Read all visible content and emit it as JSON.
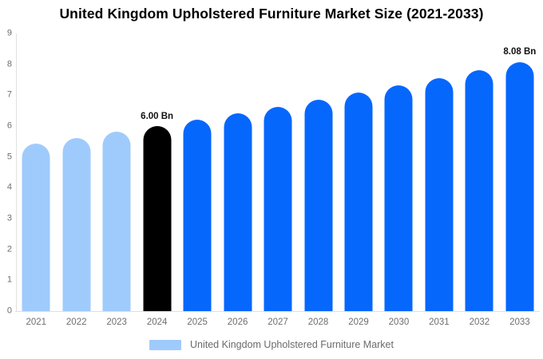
{
  "title": "United Kingdom Upholstered Furniture Market Size (2021-2033)",
  "legend": {
    "label": "United Kingdom Upholstered Furniture Market",
    "swatch_color": "#9fcbfc"
  },
  "chart_data": {
    "type": "bar",
    "title": "United Kingdom Upholstered Furniture Market Size (2021-2033)",
    "xlabel": "",
    "ylabel": "",
    "categories": [
      "2021",
      "2022",
      "2023",
      "2024",
      "2025",
      "2026",
      "2027",
      "2028",
      "2029",
      "2030",
      "2031",
      "2032",
      "2033"
    ],
    "values": [
      5.43,
      5.62,
      5.81,
      6.0,
      6.2,
      6.41,
      6.62,
      6.85,
      7.08,
      7.31,
      7.56,
      7.81,
      8.08
    ],
    "unit": "Bn",
    "value_labels": [
      "",
      "",
      "",
      "6.00 Bn",
      "",
      "",
      "",
      "",
      "",
      "",
      "",
      "",
      "8.08 Bn"
    ],
    "color_keys": [
      "historic",
      "historic",
      "historic",
      "base",
      "forecast",
      "forecast",
      "forecast",
      "forecast",
      "forecast",
      "forecast",
      "forecast",
      "forecast",
      "forecast"
    ],
    "colors": {
      "historic": "#9fcbfc",
      "base": "#000000",
      "forecast": "#0667fd"
    },
    "ylim": [
      0,
      9
    ],
    "yticks": [
      0,
      1,
      2,
      3,
      4,
      5,
      6,
      7,
      8,
      9
    ],
    "grid": false,
    "legend_position": "bottom",
    "legend_entries": [
      "United Kingdom Upholstered Furniture Market"
    ],
    "axis_color": "#e0e0e0",
    "tick_label_color": "#6e6e6e"
  }
}
